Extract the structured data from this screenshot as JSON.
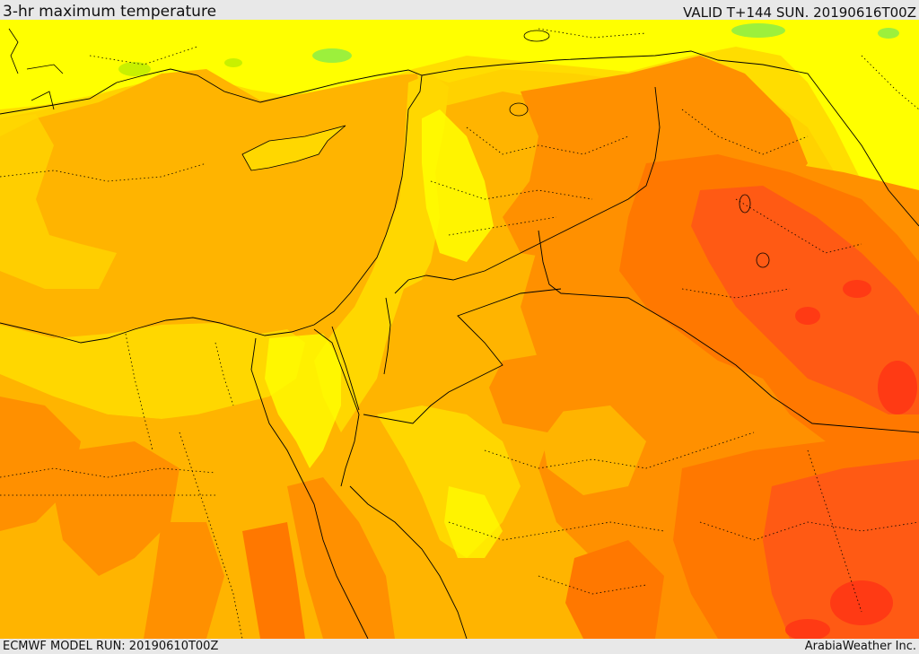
{
  "header": {
    "title": "3-hr maximum temperature",
    "valid": "VALID T+144 SUN. 20190616T00Z"
  },
  "footer": {
    "model_run": "ECMWF MODEL RUN: 20190610T00Z",
    "credit": "ArabiaWeather Inc."
  },
  "map": {
    "palette": {
      "green": "#9cf03c",
      "light_yellow": "#e8f400",
      "yellow": "#ffff00",
      "gold": "#ffd700",
      "amber": "#ffb400",
      "orange": "#ff9000",
      "dark_orange": "#ff7800",
      "red_orange": "#ff5a14",
      "red": "#ff3a14",
      "land_border": "#000000",
      "internal_border": "#000000"
    }
  }
}
